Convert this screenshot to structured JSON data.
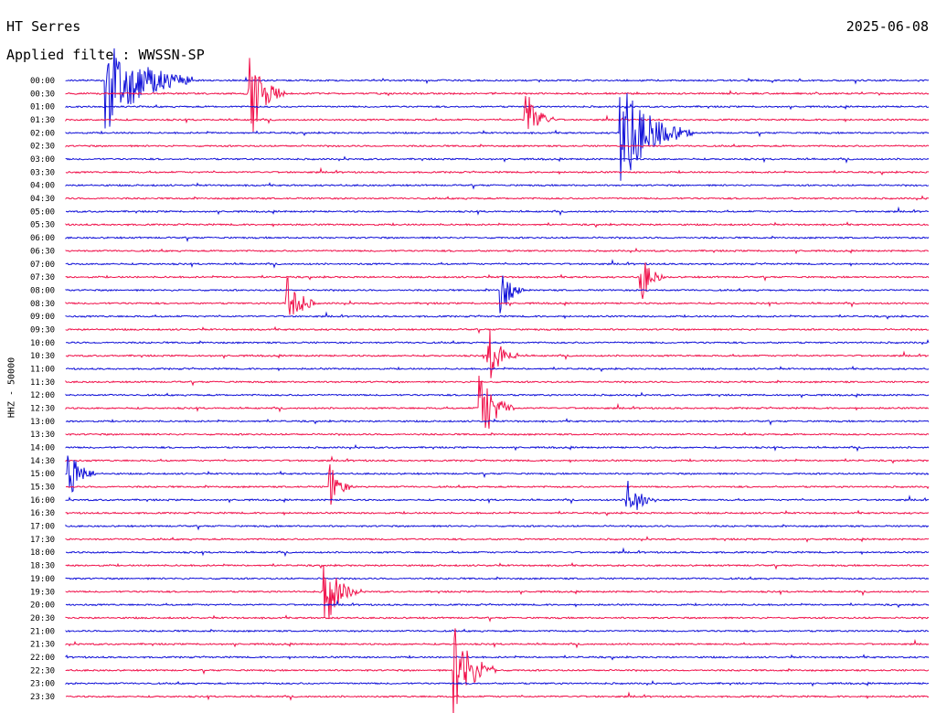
{
  "header": {
    "station": "HT Serres",
    "date": "2025-06-08",
    "filter_label": "Applied filte : WWSSN-SP"
  },
  "y_axis_label": "HHZ - 50000",
  "colors": {
    "even_trace": "#1010d8",
    "odd_trace": "#f0104a"
  },
  "chart_data": {
    "type": "line",
    "title": "",
    "xlabel": "",
    "ylabel": "HHZ - 50000",
    "row_labels": [
      "00:00",
      "00:30",
      "01:00",
      "01:30",
      "02:00",
      "02:30",
      "03:00",
      "03:30",
      "04:00",
      "04:30",
      "05:00",
      "05:30",
      "06:00",
      "06:30",
      "07:00",
      "07:30",
      "08:00",
      "08:30",
      "09:00",
      "09:30",
      "10:00",
      "10:30",
      "11:00",
      "11:30",
      "12:00",
      "12:30",
      "13:00",
      "13:30",
      "14:00",
      "14:30",
      "15:00",
      "15:30",
      "16:00",
      "16:30",
      "17:00",
      "17:30",
      "18:00",
      "18:30",
      "19:00",
      "19:30",
      "20:00",
      "20:30",
      "21:00",
      "21:30",
      "22:00",
      "22:30",
      "23:00",
      "23:30"
    ],
    "trace_minutes": 30,
    "events": [
      {
        "row": 0,
        "minute": 1.4,
        "amp": 1.0,
        "dur": 3.0
      },
      {
        "row": 1,
        "minute": 6.4,
        "amp": 0.9,
        "dur": 1.2
      },
      {
        "row": 3,
        "minute": 16.0,
        "amp": 0.6,
        "dur": 1.0
      },
      {
        "row": 4,
        "minute": 19.3,
        "amp": 1.0,
        "dur": 2.5
      },
      {
        "row": 15,
        "minute": 20.0,
        "amp": 0.5,
        "dur": 0.8
      },
      {
        "row": 16,
        "minute": 15.1,
        "amp": 0.6,
        "dur": 0.8
      },
      {
        "row": 17,
        "minute": 7.7,
        "amp": 0.6,
        "dur": 1.0
      },
      {
        "row": 21,
        "minute": 14.7,
        "amp": 0.6,
        "dur": 1.0
      },
      {
        "row": 25,
        "minute": 14.4,
        "amp": 0.8,
        "dur": 1.2
      },
      {
        "row": 30,
        "minute": 0.1,
        "amp": 0.5,
        "dur": 1.0
      },
      {
        "row": 31,
        "minute": 9.2,
        "amp": 0.4,
        "dur": 0.8
      },
      {
        "row": 32,
        "minute": 19.5,
        "amp": 0.5,
        "dur": 1.0
      },
      {
        "row": 39,
        "minute": 9.0,
        "amp": 0.7,
        "dur": 1.2
      },
      {
        "row": 45,
        "minute": 13.5,
        "amp": 0.9,
        "dur": 1.5
      }
    ]
  }
}
